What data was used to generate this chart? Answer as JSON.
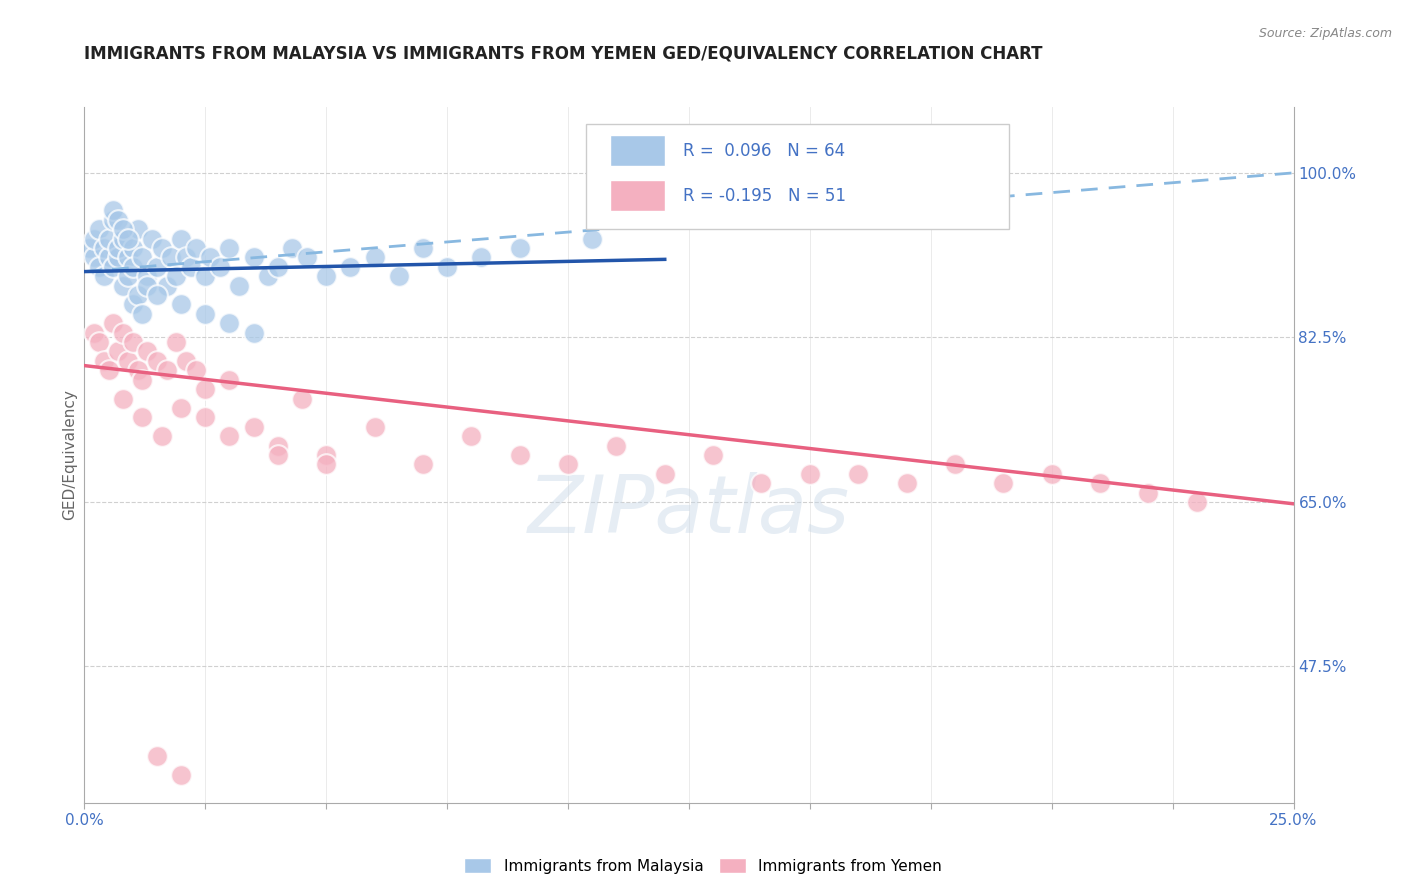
{
  "title": "IMMIGRANTS FROM MALAYSIA VS IMMIGRANTS FROM YEMEN GED/EQUIVALENCY CORRELATION CHART",
  "source": "Source: ZipAtlas.com",
  "ylabel": "GED/Equivalency",
  "xlim": [
    0.0,
    0.25
  ],
  "ylim": [
    0.33,
    1.07
  ],
  "right_yticks": [
    0.475,
    0.65,
    0.825,
    1.0
  ],
  "right_yticklabels": [
    "47.5%",
    "65.0%",
    "82.5%",
    "100.0%"
  ],
  "malaysia_R": 0.096,
  "malaysia_N": 64,
  "yemen_R": -0.195,
  "yemen_N": 51,
  "malaysia_color": "#a8c8e8",
  "yemen_color": "#f4b0c0",
  "malaysia_line_color": "#2255aa",
  "yemen_line_color": "#e86080",
  "dashed_line_color": "#88b8e0",
  "legend_label_malaysia": "Immigrants from Malaysia",
  "legend_label_yemen": "Immigrants from Yemen",
  "background_color": "#ffffff",
  "grid_color": "#d0d0d0",
  "watermark_text": "ZIPatlas",
  "malaysia_x": [
    0.001,
    0.002,
    0.002,
    0.003,
    0.003,
    0.004,
    0.004,
    0.005,
    0.005,
    0.006,
    0.006,
    0.007,
    0.007,
    0.008,
    0.008,
    0.009,
    0.009,
    0.01,
    0.01,
    0.011,
    0.012,
    0.013,
    0.014,
    0.015,
    0.016,
    0.017,
    0.018,
    0.019,
    0.02,
    0.021,
    0.022,
    0.023,
    0.025,
    0.026,
    0.028,
    0.03,
    0.032,
    0.035,
    0.038,
    0.04,
    0.043,
    0.046,
    0.05,
    0.055,
    0.06,
    0.065,
    0.07,
    0.075,
    0.082,
    0.09,
    0.01,
    0.011,
    0.012,
    0.013,
    0.006,
    0.007,
    0.008,
    0.009,
    0.015,
    0.02,
    0.025,
    0.03,
    0.105,
    0.035
  ],
  "malaysia_y": [
    0.92,
    0.91,
    0.93,
    0.9,
    0.94,
    0.89,
    0.92,
    0.91,
    0.93,
    0.9,
    0.95,
    0.91,
    0.92,
    0.88,
    0.93,
    0.91,
    0.89,
    0.92,
    0.9,
    0.94,
    0.91,
    0.89,
    0.93,
    0.9,
    0.92,
    0.88,
    0.91,
    0.89,
    0.93,
    0.91,
    0.9,
    0.92,
    0.89,
    0.91,
    0.9,
    0.92,
    0.88,
    0.91,
    0.89,
    0.9,
    0.92,
    0.91,
    0.89,
    0.9,
    0.91,
    0.89,
    0.92,
    0.9,
    0.91,
    0.92,
    0.86,
    0.87,
    0.85,
    0.88,
    0.96,
    0.95,
    0.94,
    0.93,
    0.87,
    0.86,
    0.85,
    0.84,
    0.93,
    0.83
  ],
  "yemen_x": [
    0.002,
    0.003,
    0.004,
    0.005,
    0.006,
    0.007,
    0.008,
    0.009,
    0.01,
    0.011,
    0.012,
    0.013,
    0.015,
    0.017,
    0.019,
    0.021,
    0.023,
    0.025,
    0.03,
    0.035,
    0.04,
    0.045,
    0.05,
    0.06,
    0.07,
    0.08,
    0.09,
    0.1,
    0.11,
    0.12,
    0.13,
    0.14,
    0.15,
    0.16,
    0.17,
    0.18,
    0.19,
    0.2,
    0.21,
    0.22,
    0.23,
    0.008,
    0.012,
    0.016,
    0.02,
    0.025,
    0.03,
    0.04,
    0.05,
    0.015,
    0.02
  ],
  "yemen_y": [
    0.83,
    0.82,
    0.8,
    0.79,
    0.84,
    0.81,
    0.83,
    0.8,
    0.82,
    0.79,
    0.78,
    0.81,
    0.8,
    0.79,
    0.82,
    0.8,
    0.79,
    0.77,
    0.78,
    0.73,
    0.71,
    0.76,
    0.7,
    0.73,
    0.69,
    0.72,
    0.7,
    0.69,
    0.71,
    0.68,
    0.7,
    0.67,
    0.68,
    0.68,
    0.67,
    0.69,
    0.67,
    0.68,
    0.67,
    0.66,
    0.65,
    0.76,
    0.74,
    0.72,
    0.75,
    0.74,
    0.72,
    0.7,
    0.69,
    0.38,
    0.36
  ],
  "mal_trend_x0": 0.0,
  "mal_trend_y0": 0.895,
  "mal_trend_x1": 0.12,
  "mal_trend_y1": 0.908,
  "dash_trend_x0": 0.0,
  "dash_trend_y0": 0.895,
  "dash_trend_x1": 0.25,
  "dash_trend_y1": 1.0,
  "yem_trend_x0": 0.0,
  "yem_trend_y0": 0.795,
  "yem_trend_x1": 0.25,
  "yem_trend_y1": 0.648
}
